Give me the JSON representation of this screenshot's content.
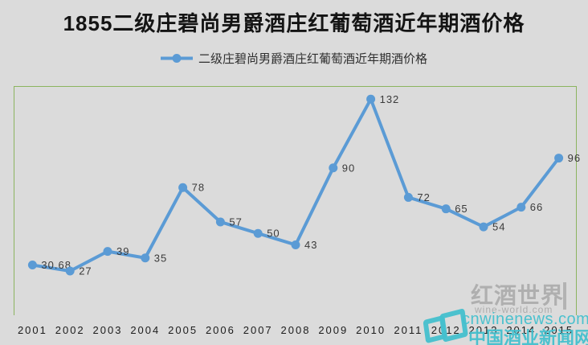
{
  "page": {
    "background": "#dbdbdb"
  },
  "title": "1855二级庄碧尚男爵酒庄红葡萄酒近年期酒价格",
  "legend": {
    "label": "二级庄碧尚男爵酒庄红葡萄酒近年期酒价格",
    "marker_color": "#5b9bd5"
  },
  "chart_data": {
    "type": "line",
    "title": "1855二级庄碧尚男爵酒庄红葡萄酒近年期酒价格",
    "categories": [
      "2001",
      "2002",
      "2003",
      "2004",
      "2005",
      "2006",
      "2007",
      "2008",
      "2009",
      "2010",
      "2011",
      "2012",
      "2013",
      "2014",
      "2015"
    ],
    "series": [
      {
        "name": "二级庄碧尚男爵酒庄红葡萄酒近年期酒价格",
        "values": [
          30.68,
          27,
          39,
          35,
          78,
          57,
          50,
          43,
          90,
          132,
          72,
          65,
          54,
          66,
          96
        ]
      }
    ],
    "data_labels": [
      "30.68",
      "27",
      "39",
      "35",
      "78",
      "57",
      "50",
      "43",
      "90",
      "132",
      "72",
      "65",
      "54",
      "66",
      "96"
    ],
    "xlabel": "",
    "ylabel": "",
    "ylim": [
      0,
      140
    ],
    "gridlines": false,
    "y_axis_visible": false,
    "legend_position": "top",
    "line_color": "#5b9bd5",
    "marker_color": "#5b9bd5",
    "label_color": "#3a3a3a",
    "axis_label_color": "#1c1c1c",
    "plot_border_color": "#8cb45f"
  },
  "watermarks": {
    "wine_world": {
      "title": "红酒世界",
      "url": "wine-world.com"
    },
    "cnwinenews": {
      "url": "cnwinenews.com",
      "site_name": "中国酒业新闻网"
    }
  }
}
